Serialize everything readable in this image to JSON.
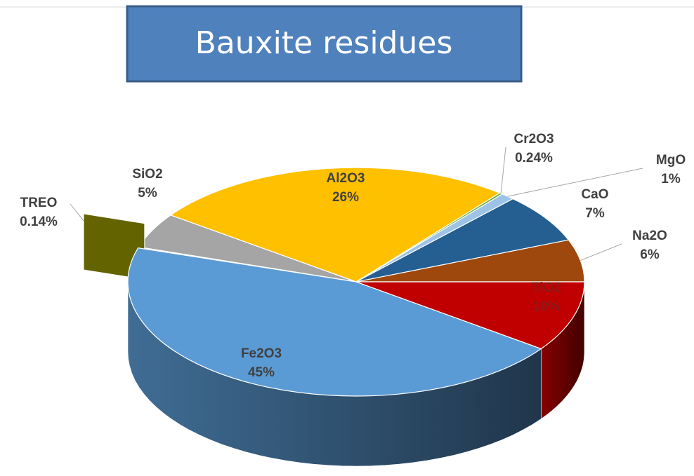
{
  "chart_data": {
    "type": "pie",
    "title": "Bauxite residues",
    "categories": [
      "Na2O",
      "CaO",
      "MgO",
      "Cr2O3",
      "Al2O3",
      "SiO2",
      "TREO",
      "Fe2O3",
      "TiO2"
    ],
    "values": [
      6,
      7,
      1,
      0.24,
      26,
      5,
      0.14,
      45,
      10
    ],
    "value_labels": [
      "6%",
      "7%",
      "1%",
      "0.24%",
      "26%",
      "5%",
      "0.14%",
      "45%",
      "10%"
    ],
    "colors": [
      "#9e480e",
      "#255e91",
      "#9dc3e6",
      "#70ad47",
      "#ffc000",
      "#a5a5a5",
      "#636300",
      "#5b9bd5",
      "#c00000"
    ],
    "three_d": true,
    "exploded": "TREO"
  }
}
